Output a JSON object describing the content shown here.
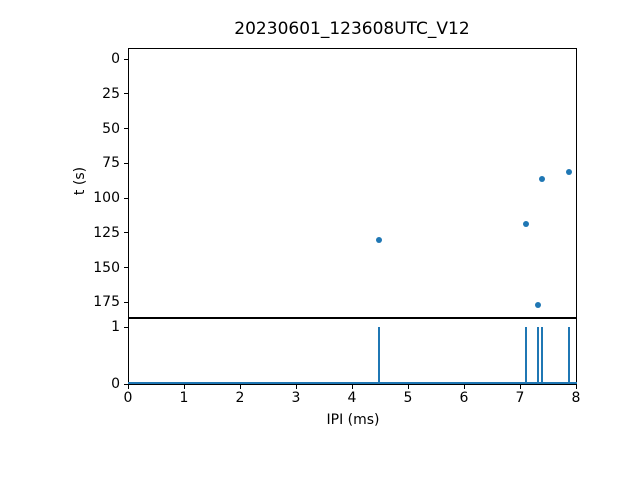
{
  "figure": {
    "title": "20230601_123608UTC_V12",
    "background": "#ffffff",
    "axes_color": "#000000"
  },
  "chart_data": [
    {
      "type": "scatter",
      "title": "20230601_123608UTC_V12",
      "xlabel": "",
      "ylabel": "t (s)",
      "x": [
        4.49,
        7.11,
        7.32,
        7.4,
        7.88
      ],
      "y": [
        130,
        119,
        177,
        86,
        81
      ],
      "xlim": [
        0,
        8
      ],
      "ylim": [
        -7.9,
        185.6
      ],
      "y_inverted": true,
      "yticks": [
        0,
        25,
        50,
        75,
        100,
        125,
        150,
        175
      ],
      "grid": false,
      "legend": null,
      "marker_color": "#1f77b4"
    },
    {
      "type": "line",
      "title": "",
      "xlabel": "IPI (ms)",
      "ylabel": "",
      "spike_x": [
        4.49,
        7.11,
        7.32,
        7.4,
        7.88
      ],
      "spike_top": 1,
      "baseline_y": 0,
      "xlim": [
        0,
        8
      ],
      "ylim": [
        0,
        1.16
      ],
      "xticks": [
        0,
        1,
        2,
        3,
        4,
        5,
        6,
        7,
        8
      ],
      "yticks": [
        0,
        1
      ],
      "grid": false,
      "legend": null,
      "line_color": "#1f77b4"
    }
  ]
}
